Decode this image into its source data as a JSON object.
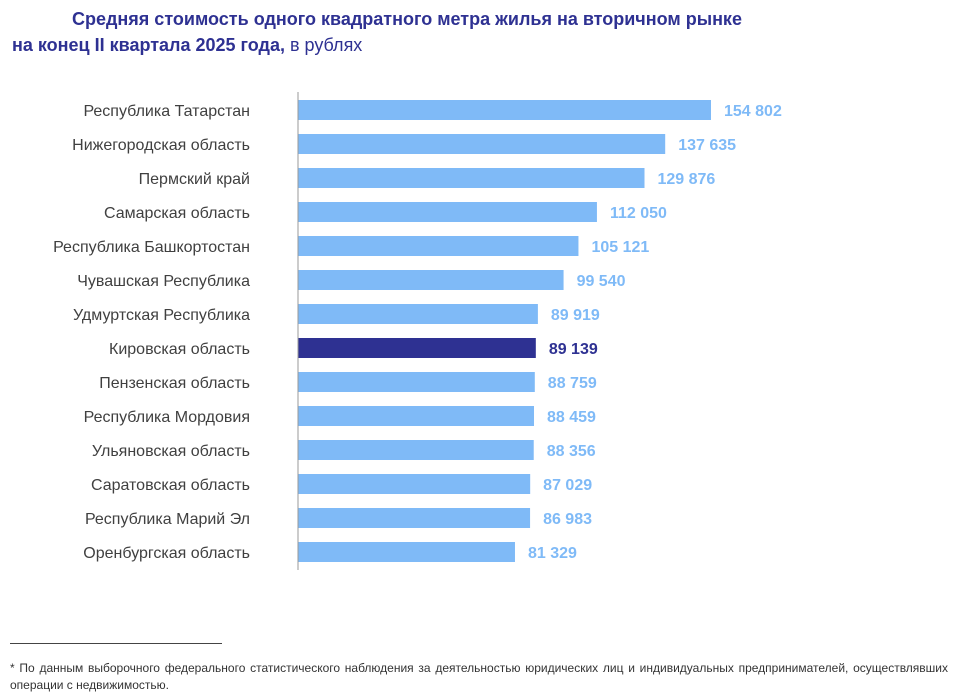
{
  "header": {
    "title_line1": "Средняя стоимость одного квадратного метра жилья на вторичном рынке",
    "title_line2_bold": "на конец II квартала 2025 года,",
    "title_line2_units": " в рублях"
  },
  "colors": {
    "bar_default": "#7fbaf7",
    "bar_highlight": "#2e3192",
    "label_default": "#7fbaf7",
    "label_highlight": "#2e3192",
    "category_text": "#404040",
    "axis": "#999999"
  },
  "chart_data": {
    "type": "bar",
    "orientation": "horizontal",
    "categories": [
      "Республика Татарстан",
      "Нижегородская область",
      "Пермский край",
      "Самарская область",
      "Республика Башкортостан",
      "Чувашская Республика",
      "Удмуртская Республика",
      "Кировская область",
      "Пензенская область",
      "Республика Мордовия",
      "Ульяновская область",
      "Саратовская область",
      "Республика Марий Эл",
      "Оренбургская область"
    ],
    "values": [
      154802,
      137635,
      129876,
      112050,
      105121,
      99540,
      89919,
      89139,
      88759,
      88459,
      88356,
      87029,
      86983,
      81329
    ],
    "value_labels": [
      "154 802",
      "137 635",
      "129 876",
      "112 050",
      "105 121",
      "99 540",
      "89 919",
      "89 139",
      "88 759",
      "88 459",
      "88 356",
      "87 029",
      "86 983",
      "81 329"
    ],
    "highlight_index": 7,
    "xlim": [
      0,
      160000
    ],
    "grid": false
  },
  "footnote": "* По данным выборочного федерального статистического наблюдения за деятельностью юридических лиц и индивидуальных предпринимателей, осуществлявших операции с недвижимостью."
}
